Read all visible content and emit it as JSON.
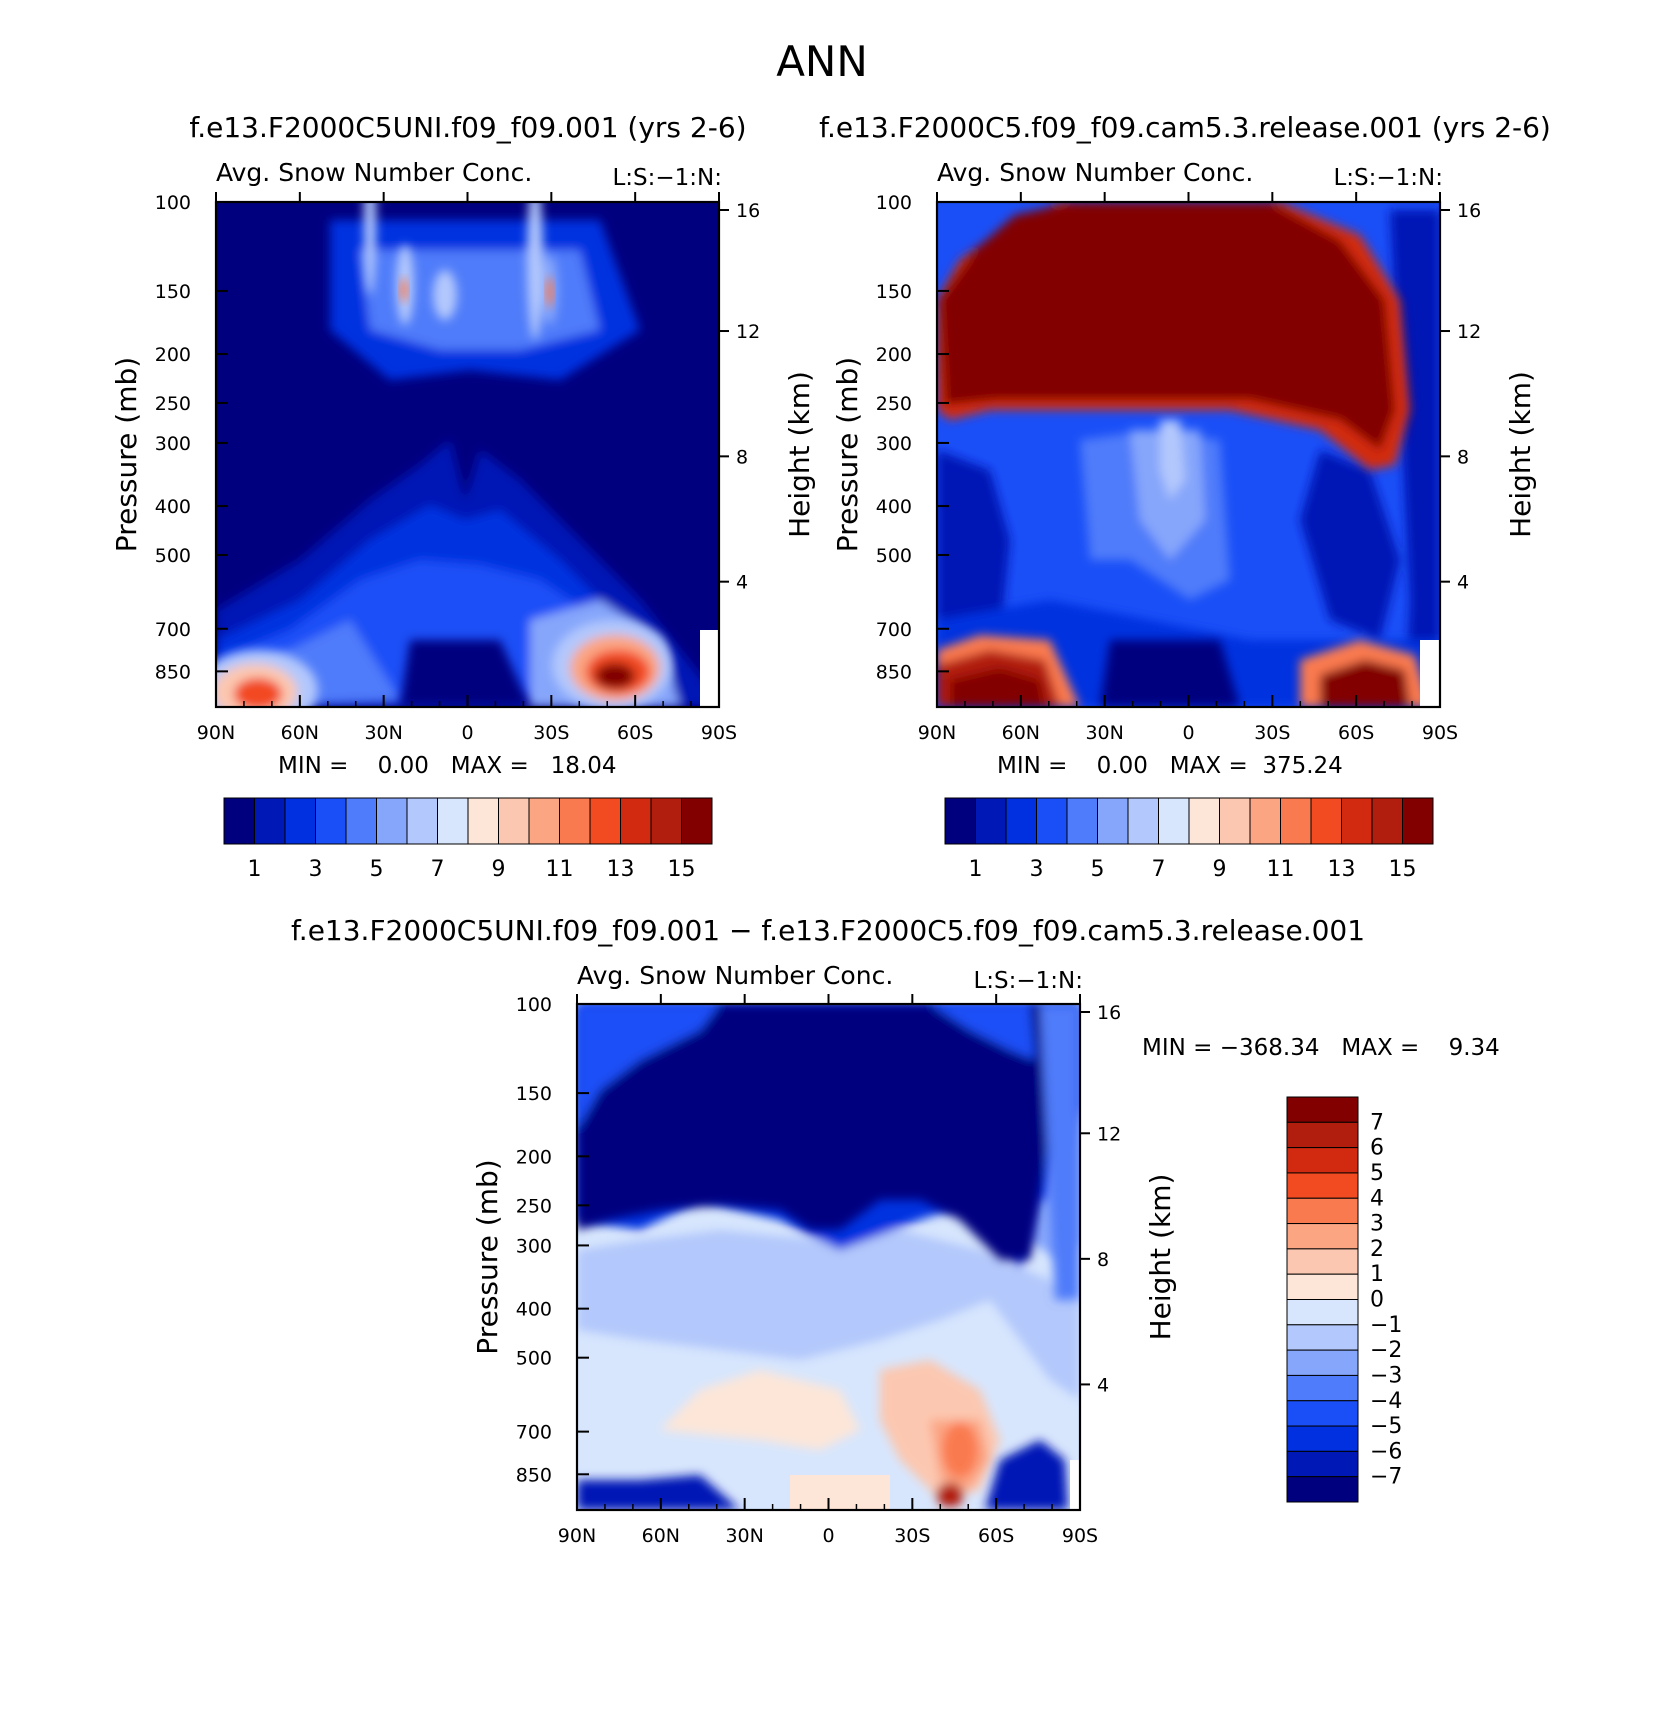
{
  "page_title": "ANN",
  "panels": [
    {
      "case_title": "f.e13.F2000C5UNI.f09_f09.001 (yrs 2-6)",
      "variable": "Avg. Snow Number Conc.",
      "code": "L:S:−1:N:",
      "minmax": "MIN =    0.00   MAX =   18.04"
    },
    {
      "case_title": "f.e13.F2000C5.f09_f09.cam5.3.release.001 (yrs 2-6)",
      "variable": "Avg. Snow Number Conc.",
      "code": "L:S:−1:N:",
      "minmax": "MIN =    0.00   MAX =  375.24"
    },
    {
      "case_title": "f.e13.F2000C5UNI.f09_f09.001 − f.e13.F2000C5.f09_f09.cam5.3.release.001",
      "variable": "Avg. Snow Number Conc.",
      "code": "L:S:−1:N:",
      "minmax": "MIN = −368.34   MAX =    9.34"
    }
  ],
  "chart_data": [
    {
      "type": "heatmap",
      "title": "Avg. Snow Number Conc.",
      "ylabel": "Pressure (mb)",
      "ylabel_right": "Height (km)",
      "xlim": [
        "90N",
        "90S"
      ],
      "ylim": [
        1000,
        100
      ],
      "x_ticks": [
        "90N",
        "60N",
        "30N",
        "0",
        "30S",
        "60S",
        "90S"
      ],
      "y_ticks": [
        100,
        150,
        200,
        250,
        300,
        400,
        500,
        700,
        850
      ],
      "y_ticks_right": [
        4,
        8,
        12,
        16
      ],
      "min": 0.0,
      "max": 18.04,
      "colorbar_levels": [
        1,
        2,
        3,
        4,
        5,
        6,
        7,
        8,
        9,
        10,
        11,
        12,
        13,
        14,
        15
      ],
      "colorbar_labels": [
        "1",
        "3",
        "5",
        "7",
        "9",
        "11",
        "13",
        "15"
      ]
    },
    {
      "type": "heatmap",
      "title": "Avg. Snow Number Conc.",
      "ylabel": "Pressure (mb)",
      "ylabel_right": "Height (km)",
      "xlim": [
        "90N",
        "90S"
      ],
      "ylim": [
        1000,
        100
      ],
      "x_ticks": [
        "90N",
        "60N",
        "30N",
        "0",
        "30S",
        "60S",
        "90S"
      ],
      "y_ticks": [
        100,
        150,
        200,
        250,
        300,
        400,
        500,
        700,
        850
      ],
      "y_ticks_right": [
        4,
        8,
        12,
        16
      ],
      "min": 0.0,
      "max": 375.24,
      "colorbar_levels": [
        1,
        2,
        3,
        4,
        5,
        6,
        7,
        8,
        9,
        10,
        11,
        12,
        13,
        14,
        15
      ],
      "colorbar_labels": [
        "1",
        "3",
        "5",
        "7",
        "9",
        "11",
        "13",
        "15"
      ]
    },
    {
      "type": "heatmap",
      "title": "Avg. Snow Number Conc.",
      "ylabel": "Pressure (mb)",
      "ylabel_right": "Height (km)",
      "xlim": [
        "90N",
        "90S"
      ],
      "ylim": [
        1000,
        100
      ],
      "x_ticks": [
        "90N",
        "60N",
        "30N",
        "0",
        "30S",
        "60S",
        "90S"
      ],
      "y_ticks": [
        100,
        150,
        200,
        250,
        300,
        400,
        500,
        700,
        850
      ],
      "y_ticks_right": [
        4,
        8,
        12,
        16
      ],
      "min": -368.34,
      "max": 9.34,
      "colorbar_levels": [
        -7,
        -6,
        -5,
        -4,
        -3,
        -2,
        -1,
        0,
        1,
        2,
        3,
        4,
        5,
        6,
        7
      ],
      "colorbar_labels": [
        "7",
        "6",
        "5",
        "4",
        "3",
        "2",
        "1",
        "0",
        "−1",
        "−2",
        "−3",
        "−4",
        "−5",
        "−6",
        "−7"
      ]
    }
  ],
  "palette": [
    "#00007f",
    "#0018b5",
    "#0030e0",
    "#1a4ff7",
    "#4f7cfa",
    "#86a6fb",
    "#b3c8fc",
    "#d7e6fd",
    "#fde6d8",
    "#fcc7b0",
    "#fba583",
    "#fa7a50",
    "#f24a21",
    "#d22a10",
    "#b11e0d",
    "#820000"
  ]
}
